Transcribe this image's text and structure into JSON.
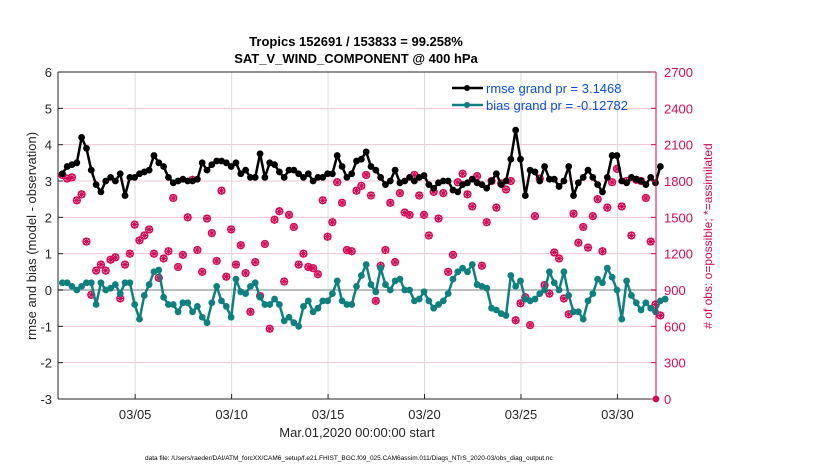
{
  "chart_data": {
    "type": "line",
    "title": "Tropics 152691 / 153833 = 99.258%",
    "subtitle": "SAT_V_WIND_COMPONENT @ 400 hPa",
    "xlabel": "Mar.01,2020 00:00:00 start",
    "ylabel": "rmse and bias (model - observation)",
    "ylabel_right": "# of obs: o=possible; *=assimilated",
    "xlim": [
      0,
      31
    ],
    "ylim": [
      -3,
      6
    ],
    "ylim_right": [
      0,
      2700
    ],
    "x_ticks": [
      {
        "day": 4,
        "label": "03/05"
      },
      {
        "day": 9,
        "label": "03/10"
      },
      {
        "day": 14,
        "label": "03/15"
      },
      {
        "day": 19,
        "label": "03/20"
      },
      {
        "day": 24,
        "label": "03/25"
      },
      {
        "day": 29,
        "label": "03/30"
      }
    ],
    "y_ticks": [
      "6",
      "5",
      "4",
      "3",
      "2",
      "1",
      "0",
      "-1",
      "-2",
      "-3"
    ],
    "y_ticks_right": [
      "2700",
      "2400",
      "2100",
      "1800",
      "1500",
      "1200",
      "900",
      "600",
      "300",
      "0"
    ],
    "grid": true,
    "legend_position": "top-right",
    "legend": [
      {
        "label": "rmse grand pr = 3.1468",
        "color": "#000000"
      },
      {
        "label": "bias grand pr = -0.12782",
        "color": "#0f8080"
      }
    ],
    "colors": {
      "rmse": "#000000",
      "bias": "#0f8080",
      "obs": "#d10a57",
      "zero_line": "#bdbdbd",
      "grid": "#f2c4d4"
    },
    "x_step_days": 0.25,
    "series": [
      {
        "name": "rmse",
        "values": [
          3.2,
          3.4,
          3.45,
          3.5,
          4.2,
          3.9,
          3.3,
          2.9,
          2.7,
          3.0,
          3.1,
          3.0,
          3.2,
          2.6,
          3.1,
          3.1,
          3.2,
          3.25,
          3.3,
          3.7,
          3.5,
          3.4,
          3.1,
          2.95,
          3.0,
          3.05,
          3.0,
          3.0,
          3.05,
          3.5,
          3.3,
          3.45,
          3.55,
          3.55,
          3.5,
          3.4,
          3.5,
          3.2,
          3.3,
          3.1,
          3.1,
          3.75,
          3.1,
          3.5,
          3.45,
          3.25,
          3.1,
          3.3,
          3.3,
          3.2,
          3.1,
          3.2,
          3.0,
          3.1,
          3.1,
          3.2,
          3.2,
          3.7,
          3.4,
          3.1,
          3.2,
          3.55,
          3.6,
          3.8,
          3.4,
          3.3,
          3.1,
          2.9,
          3.0,
          3.3,
          2.95,
          3.0,
          3.1,
          3.0,
          3.1,
          3.15,
          2.9,
          2.8,
          2.95,
          3.0,
          3.0,
          2.75,
          2.7,
          2.9,
          2.95,
          3.05,
          2.95,
          2.9,
          2.8,
          3.0,
          3.2,
          2.9,
          3.0,
          3.6,
          4.4,
          3.6,
          2.6,
          3.3,
          3.25,
          3.0,
          3.4,
          3.05,
          3.05,
          2.85,
          3.0,
          3.4,
          2.6,
          2.95,
          3.1,
          3.3,
          3.1,
          2.9,
          2.7,
          3.1,
          3.7,
          3.7,
          3.0,
          2.95,
          3.1,
          3.05,
          3.0,
          2.9,
          3.1,
          2.95,
          3.4
        ]
      },
      {
        "name": "bias",
        "values": [
          0.2,
          0.2,
          0.1,
          0.0,
          0.1,
          0.2,
          0.2,
          -0.4,
          0.2,
          0.0,
          0.05,
          0.15,
          -0.1,
          0.2,
          0.2,
          -0.4,
          -0.8,
          -0.15,
          0.15,
          0.5,
          0.55,
          -0.2,
          -0.4,
          -0.4,
          -0.6,
          -0.35,
          -0.35,
          -0.6,
          -0.45,
          -0.75,
          -0.9,
          -0.35,
          0.1,
          -0.3,
          -0.45,
          -0.75,
          0.3,
          -0.05,
          -0.1,
          0.1,
          0.2,
          -0.2,
          -0.4,
          -0.4,
          -0.25,
          -0.4,
          -0.85,
          -0.75,
          -0.9,
          -1.0,
          -0.45,
          -0.3,
          -0.6,
          -0.5,
          -0.3,
          -0.3,
          -0.1,
          0.25,
          -0.3,
          -0.4,
          -0.4,
          0.1,
          0.4,
          0.7,
          0.15,
          -0.05,
          0.6,
          0.15,
          0.0,
          0.25,
          0.3,
          0.0,
          0.0,
          -0.3,
          -0.25,
          -0.05,
          -0.3,
          -0.5,
          -0.4,
          -0.3,
          -0.1,
          0.3,
          0.5,
          0.6,
          0.5,
          0.7,
          0.15,
          0.1,
          0.05,
          -0.5,
          -0.55,
          -0.65,
          -0.7,
          0.4,
          0.1,
          0.25,
          -0.25,
          -0.3,
          -0.25,
          -0.1,
          0.0,
          0.5,
          0.2,
          0.0,
          0.5,
          -0.15,
          -0.6,
          -0.6,
          -0.8,
          -0.3,
          -0.1,
          0.3,
          0.2,
          0.6,
          0.35,
          0.0,
          -0.8,
          0.25,
          -0.15,
          -0.35,
          -0.55,
          -0.35,
          -0.5,
          -0.6,
          -0.3,
          -0.25
        ]
      },
      {
        "name": "obs_possible",
        "values": [
          1850,
          1820,
          1830,
          1640,
          1690,
          1300,
          860,
          1060,
          1110,
          1060,
          1150,
          1170,
          830,
          1110,
          1200,
          1440,
          1310,
          1350,
          1400,
          1200,
          1000,
          1160,
          1220,
          1660,
          1090,
          1190,
          1500,
          1810,
          1230,
          1050,
          1490,
          1370,
          1140,
          1720,
          1010,
          1400,
          1110,
          1270,
          1040,
          720,
          1130,
          850,
          1280,
          580,
          1480,
          1550,
          970,
          1520,
          1420,
          1110,
          1200,
          1090,
          1080,
          1030,
          1640,
          1340,
          1460,
          1790,
          1620,
          1230,
          1220,
          1720,
          1760,
          1850,
          1680,
          810,
          1100,
          1230,
          1620,
          1130,
          1700,
          1540,
          1520,
          1850,
          1680,
          1520,
          1350,
          1710,
          1490,
          1700,
          1050,
          1190,
          1790,
          1860,
          1690,
          1590,
          1840,
          1100,
          1460,
          1800,
          1580,
          1780,
          1730,
          1800,
          650,
          790,
          840,
          610,
          1510,
          1820,
          940,
          870,
          1210,
          1160,
          830,
          700,
          1530,
          1290,
          1420,
          1250,
          1510,
          1650,
          1220,
          1580,
          1790,
          1900,
          1590,
          1800,
          1350,
          1810,
          1800,
          1660,
          1300,
          780,
          690
        ]
      },
      {
        "name": "obs_assimilated_zero_point",
        "values": [
          0
        ]
      }
    ]
  }
}
